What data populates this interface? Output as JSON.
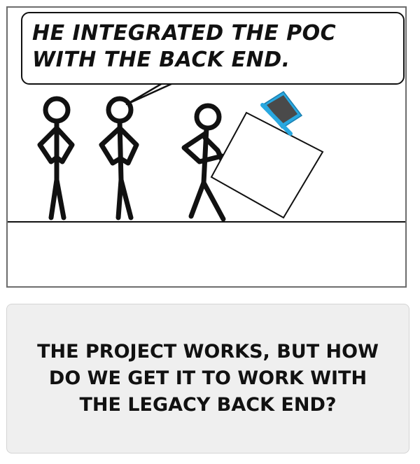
{
  "comic": {
    "speech_bubble": {
      "line1": "HE INTEGRATED THE POC",
      "line2": "WITH THE BACK END."
    },
    "caption": {
      "line1": "THE PROJECT WORKS, BUT HOW",
      "line2": "DO WE GET IT TO WORK WITH",
      "line3": "THE LEGACY BACK END?"
    }
  },
  "colors": {
    "ink": "#111111",
    "frame": "#6d6d6d",
    "laptop": "#29a8e0",
    "caption_bg": "#efefef"
  },
  "icons": [
    "laptop-icon",
    "stick-figure",
    "box"
  ]
}
